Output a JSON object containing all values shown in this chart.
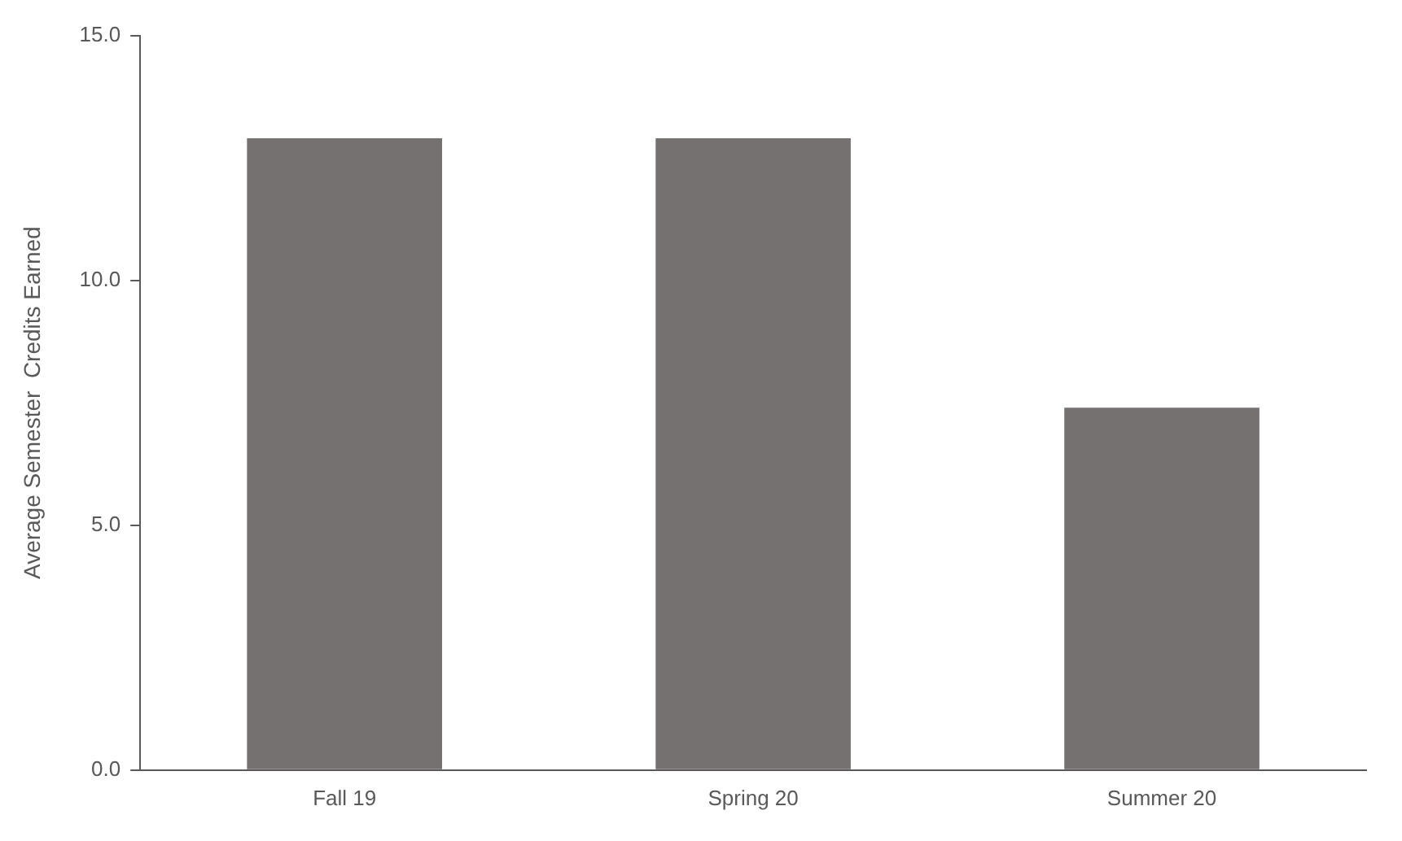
{
  "chart_data": {
    "type": "bar",
    "ylabel": "Average Semester  Credits Earned",
    "categories": [
      "Fall 19",
      "Spring 20",
      "Summer 20"
    ],
    "values": [
      12.9,
      12.9,
      7.4
    ],
    "color": "#767171",
    "ylim": [
      0,
      15
    ],
    "yticks": [
      {
        "value": 0,
        "label": "0.0"
      },
      {
        "value": 5,
        "label": "5.0"
      },
      {
        "value": 10,
        "label": "10.0"
      },
      {
        "value": 15,
        "label": "15.0"
      }
    ],
    "grid": false,
    "legend": false
  }
}
